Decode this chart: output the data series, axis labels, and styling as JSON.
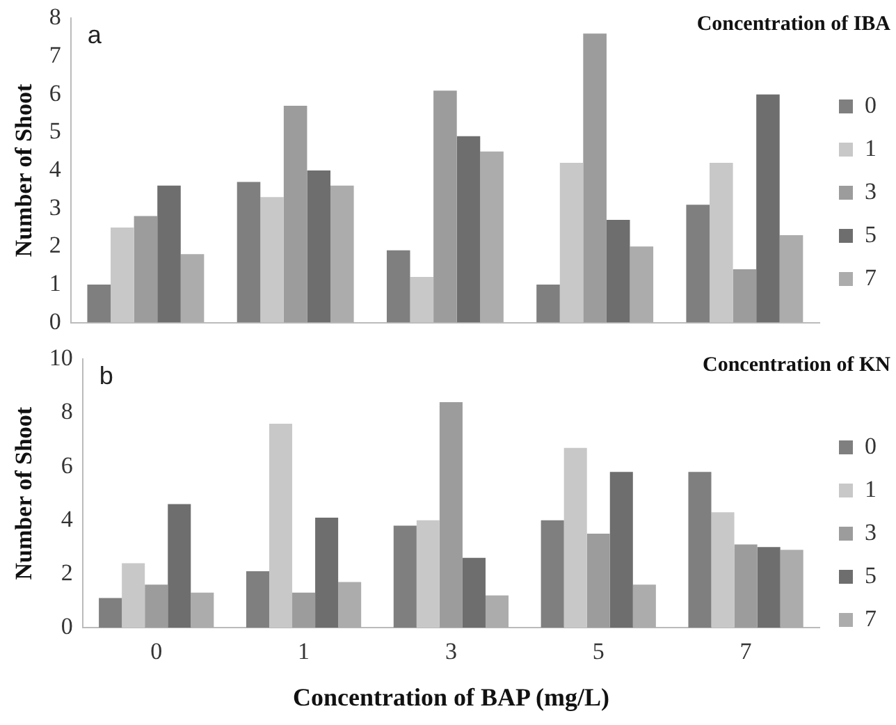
{
  "chart_data": [
    {
      "type": "bar",
      "annotations": [
        "a"
      ],
      "ylabel": "Number of Shoot",
      "legend_title": "Concentration of IBA",
      "categories": [
        "0",
        "1",
        "3",
        "5",
        "7"
      ],
      "ylim": [
        0,
        8
      ],
      "yticks": [
        0,
        1,
        2,
        3,
        4,
        5,
        6,
        7,
        8
      ],
      "tick_labels": "y",
      "grid": false,
      "legend": "right",
      "series": [
        {
          "name": "0",
          "color": "#7f7f7f",
          "values": [
            1.0,
            3.7,
            1.9,
            1.0,
            3.1
          ]
        },
        {
          "name": "1",
          "color": "#c8c8c8",
          "values": [
            2.5,
            3.3,
            1.2,
            4.2,
            4.2
          ]
        },
        {
          "name": "3",
          "color": "#9c9c9c",
          "values": [
            2.8,
            5.7,
            6.1,
            7.6,
            1.4
          ]
        },
        {
          "name": "5",
          "color": "#6e6e6e",
          "values": [
            3.6,
            4.0,
            4.9,
            2.7,
            6.0
          ]
        },
        {
          "name": "7",
          "color": "#acacac",
          "values": [
            1.8,
            3.6,
            4.5,
            2.0,
            2.3
          ]
        }
      ]
    },
    {
      "type": "bar",
      "annotations": [
        "b"
      ],
      "xlabel": "Concentration of BAP (mg/L)",
      "ylabel": "Number of Shoot",
      "legend_title": "Concentration of KN",
      "categories": [
        "0",
        "1",
        "3",
        "5",
        "7"
      ],
      "ylim": [
        0,
        10
      ],
      "yticks": [
        0,
        2,
        4,
        6,
        8,
        10
      ],
      "grid": false,
      "legend": "right",
      "series": [
        {
          "name": "0",
          "color": "#7f7f7f",
          "values": [
            1.1,
            2.1,
            3.8,
            4.0,
            5.8
          ]
        },
        {
          "name": "1",
          "color": "#c8c8c8",
          "values": [
            2.4,
            7.6,
            4.0,
            6.7,
            4.3
          ]
        },
        {
          "name": "3",
          "color": "#9c9c9c",
          "values": [
            1.6,
            1.3,
            8.4,
            3.5,
            3.1
          ]
        },
        {
          "name": "5",
          "color": "#6e6e6e",
          "values": [
            4.6,
            4.1,
            2.6,
            5.8,
            3.0
          ]
        },
        {
          "name": "7",
          "color": "#acacac",
          "values": [
            1.3,
            1.7,
            1.2,
            1.6,
            2.9
          ]
        }
      ]
    }
  ]
}
